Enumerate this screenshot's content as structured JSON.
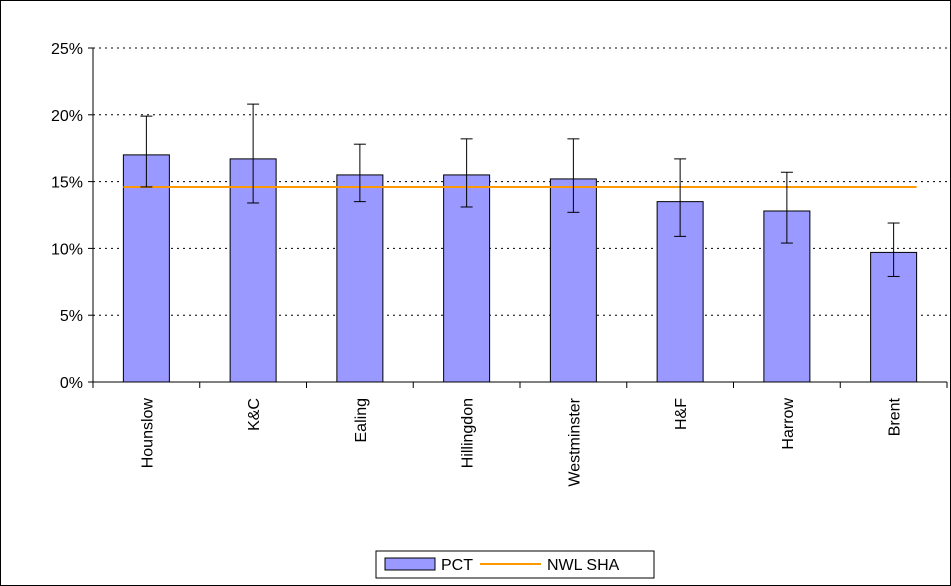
{
  "chart_data": {
    "type": "bar",
    "categories": [
      "Hounslow",
      "K&C",
      "Ealing",
      "Hillingdon",
      "Westminster",
      "H&F",
      "Harrow",
      "Brent"
    ],
    "series": [
      {
        "name": "PCT",
        "values": [
          17.0,
          16.7,
          15.5,
          15.5,
          15.2,
          13.5,
          12.8,
          9.7
        ],
        "error_low": [
          14.6,
          13.4,
          13.5,
          13.1,
          12.7,
          10.9,
          10.4,
          7.9
        ],
        "error_high": [
          19.9,
          20.8,
          17.8,
          18.2,
          18.2,
          16.7,
          15.7,
          11.9
        ]
      }
    ],
    "reference_line": {
      "name": "NWL SHA",
      "value": 14.6
    },
    "y_ticks": [
      "0%",
      "5%",
      "10%",
      "15%",
      "20%",
      "25%"
    ],
    "y_tick_values": [
      0,
      5,
      10,
      15,
      20,
      25
    ],
    "ylim": [
      0,
      25
    ],
    "grid": "horizontal dotted",
    "legend": "bottom",
    "colors": {
      "bar_fill": "#9999ff",
      "bar_stroke": "#000000",
      "line": "#ff9900",
      "grid": "#000000"
    }
  }
}
